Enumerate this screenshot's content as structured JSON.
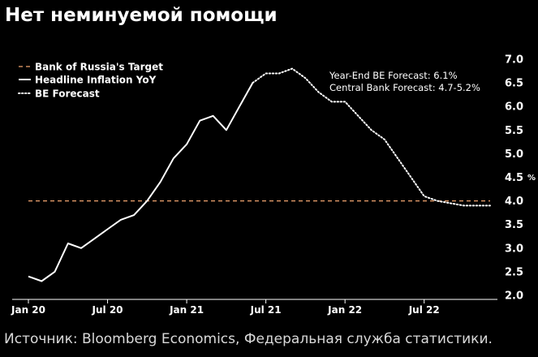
{
  "title": "Нет неминуемой помощи",
  "source": "Источник: Bloomberg Economics, Федеральная служба статистики.",
  "colors": {
    "background": "#000000",
    "target": "#f0a46e",
    "line": "#ffffff",
    "text": "#ffffff"
  },
  "chart_data": {
    "type": "line",
    "ylabel": "%",
    "ylim": [
      2.0,
      7.0
    ],
    "yticks": [
      "2.0",
      "2.5",
      "3.0",
      "3.5",
      "4.0",
      "4.5",
      "5.0",
      "5.5",
      "6.0",
      "6.5",
      "7.0"
    ],
    "xlim": [
      "2020-01",
      "2022-12"
    ],
    "xticks": [
      {
        "date": "2020-01",
        "label": "Jan 20"
      },
      {
        "date": "2020-07",
        "label": "Jul 20"
      },
      {
        "date": "2021-01",
        "label": "Jan 21"
      },
      {
        "date": "2021-07",
        "label": "Jul 21"
      },
      {
        "date": "2022-01",
        "label": "Jan 22"
      },
      {
        "date": "2022-07",
        "label": "Jul 22"
      }
    ],
    "legend": {
      "placement": "top-left"
    },
    "annotations": [
      "Year-End BE Forecast: 6.1%",
      "Central Bank Forecast: 4.7-5.2%"
    ],
    "series": [
      {
        "name": "Bank of Russia's Target",
        "style": "dashed",
        "x": [
          "2020-01",
          "2022-12"
        ],
        "values": [
          4.0,
          4.0
        ]
      },
      {
        "name": "Headline Inflation YoY",
        "style": "solid",
        "x": [
          "2020-01",
          "2020-02",
          "2020-03",
          "2020-04",
          "2020-05",
          "2020-06",
          "2020-07",
          "2020-08",
          "2020-09",
          "2020-10",
          "2020-11",
          "2020-12",
          "2021-01",
          "2021-02",
          "2021-03",
          "2021-04",
          "2021-05",
          "2021-06"
        ],
        "values": [
          2.4,
          2.3,
          2.5,
          3.1,
          3.0,
          3.2,
          3.4,
          3.6,
          3.7,
          4.0,
          4.4,
          4.9,
          5.2,
          5.7,
          5.8,
          5.5,
          6.0,
          6.5
        ]
      },
      {
        "name": "BE Forecast",
        "style": "dotted",
        "x": [
          "2021-06",
          "2021-07",
          "2021-08",
          "2021-09",
          "2021-10",
          "2021-11",
          "2021-12",
          "2022-01",
          "2022-02",
          "2022-03",
          "2022-04",
          "2022-05",
          "2022-06",
          "2022-07",
          "2022-08",
          "2022-09",
          "2022-10",
          "2022-11",
          "2022-12"
        ],
        "values": [
          6.5,
          6.7,
          6.7,
          6.8,
          6.6,
          6.3,
          6.1,
          6.1,
          5.8,
          5.5,
          5.3,
          4.9,
          4.5,
          4.1,
          4.0,
          3.95,
          3.9,
          3.9,
          3.9
        ]
      }
    ]
  }
}
